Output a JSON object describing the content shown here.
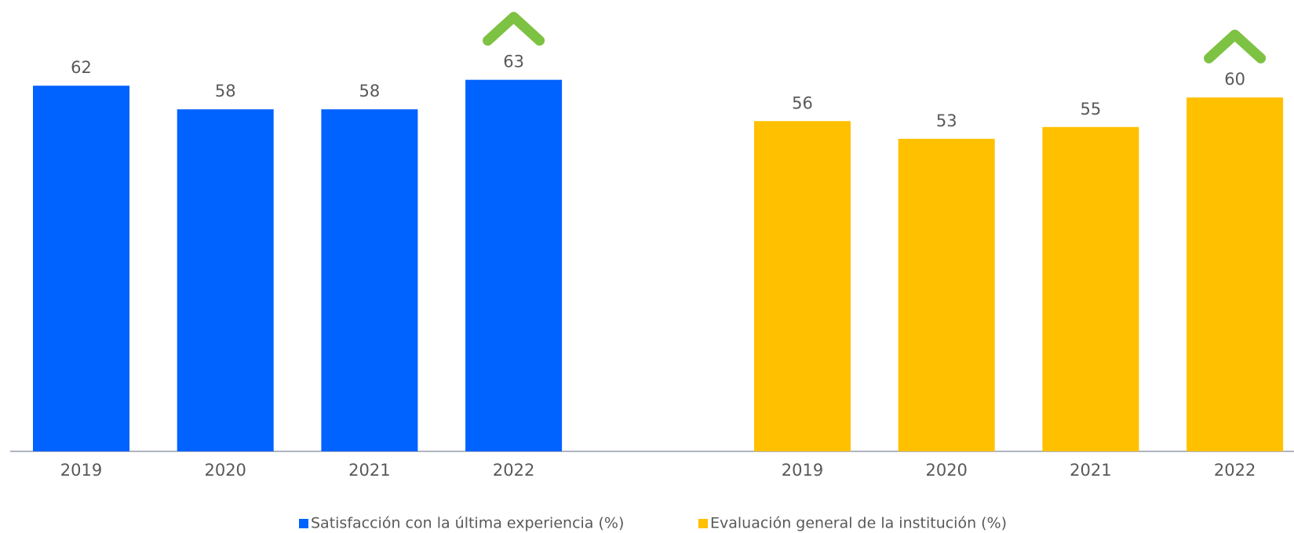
{
  "chart_data": {
    "type": "bar",
    "categories": [
      "2019",
      "2020",
      "2021",
      "2022"
    ],
    "series": [
      {
        "name": "Satisfacción con la última experiencia (%)",
        "color": "#0062ff",
        "values": [
          62,
          58,
          58,
          63
        ]
      },
      {
        "name": "Evaluación general de la institución (%)",
        "color": "#ffc000",
        "values": [
          56,
          53,
          55,
          60
        ]
      }
    ],
    "ylim": [
      0,
      76
    ]
  }
}
